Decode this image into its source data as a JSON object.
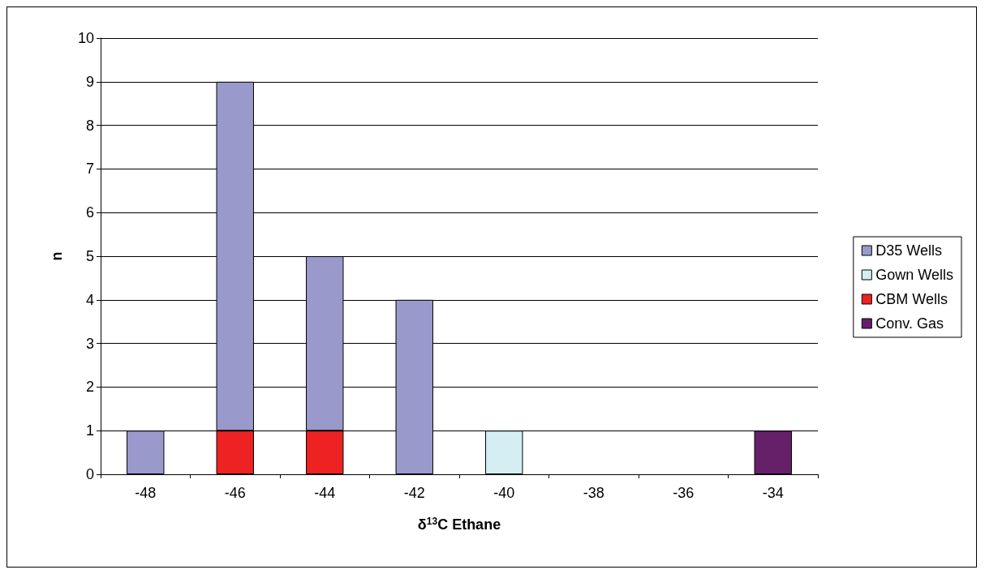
{
  "chart_data": {
    "type": "bar",
    "xlabel": "δ$^{13}$C Ethane",
    "ylabel": "n",
    "categories": [
      "-48",
      "-46",
      "-44",
      "-42",
      "-40",
      "-38",
      "-36",
      "-34"
    ],
    "stacked": true,
    "series": [
      {
        "name": "Conv. Gas",
        "color": "#66206a",
        "values": [
          null,
          null,
          null,
          null,
          null,
          null,
          null,
          1
        ]
      },
      {
        "name": "CBM Wells",
        "color": "#ee2222",
        "values": [
          null,
          1,
          1,
          null,
          null,
          null,
          null,
          null
        ]
      },
      {
        "name": "Gown Wells",
        "color": "#d4eef4",
        "values": [
          null,
          null,
          null,
          null,
          1,
          null,
          null,
          null
        ]
      },
      {
        "name": "D35 Wells",
        "color": "#9999cc",
        "values": [
          1,
          8,
          4,
          4,
          null,
          null,
          null,
          null
        ]
      }
    ],
    "ylim": [
      0,
      10
    ],
    "yticks": [
      0,
      1,
      2,
      3,
      4,
      5,
      6,
      7,
      8,
      9,
      10
    ],
    "grid": "y",
    "legend": "right"
  }
}
